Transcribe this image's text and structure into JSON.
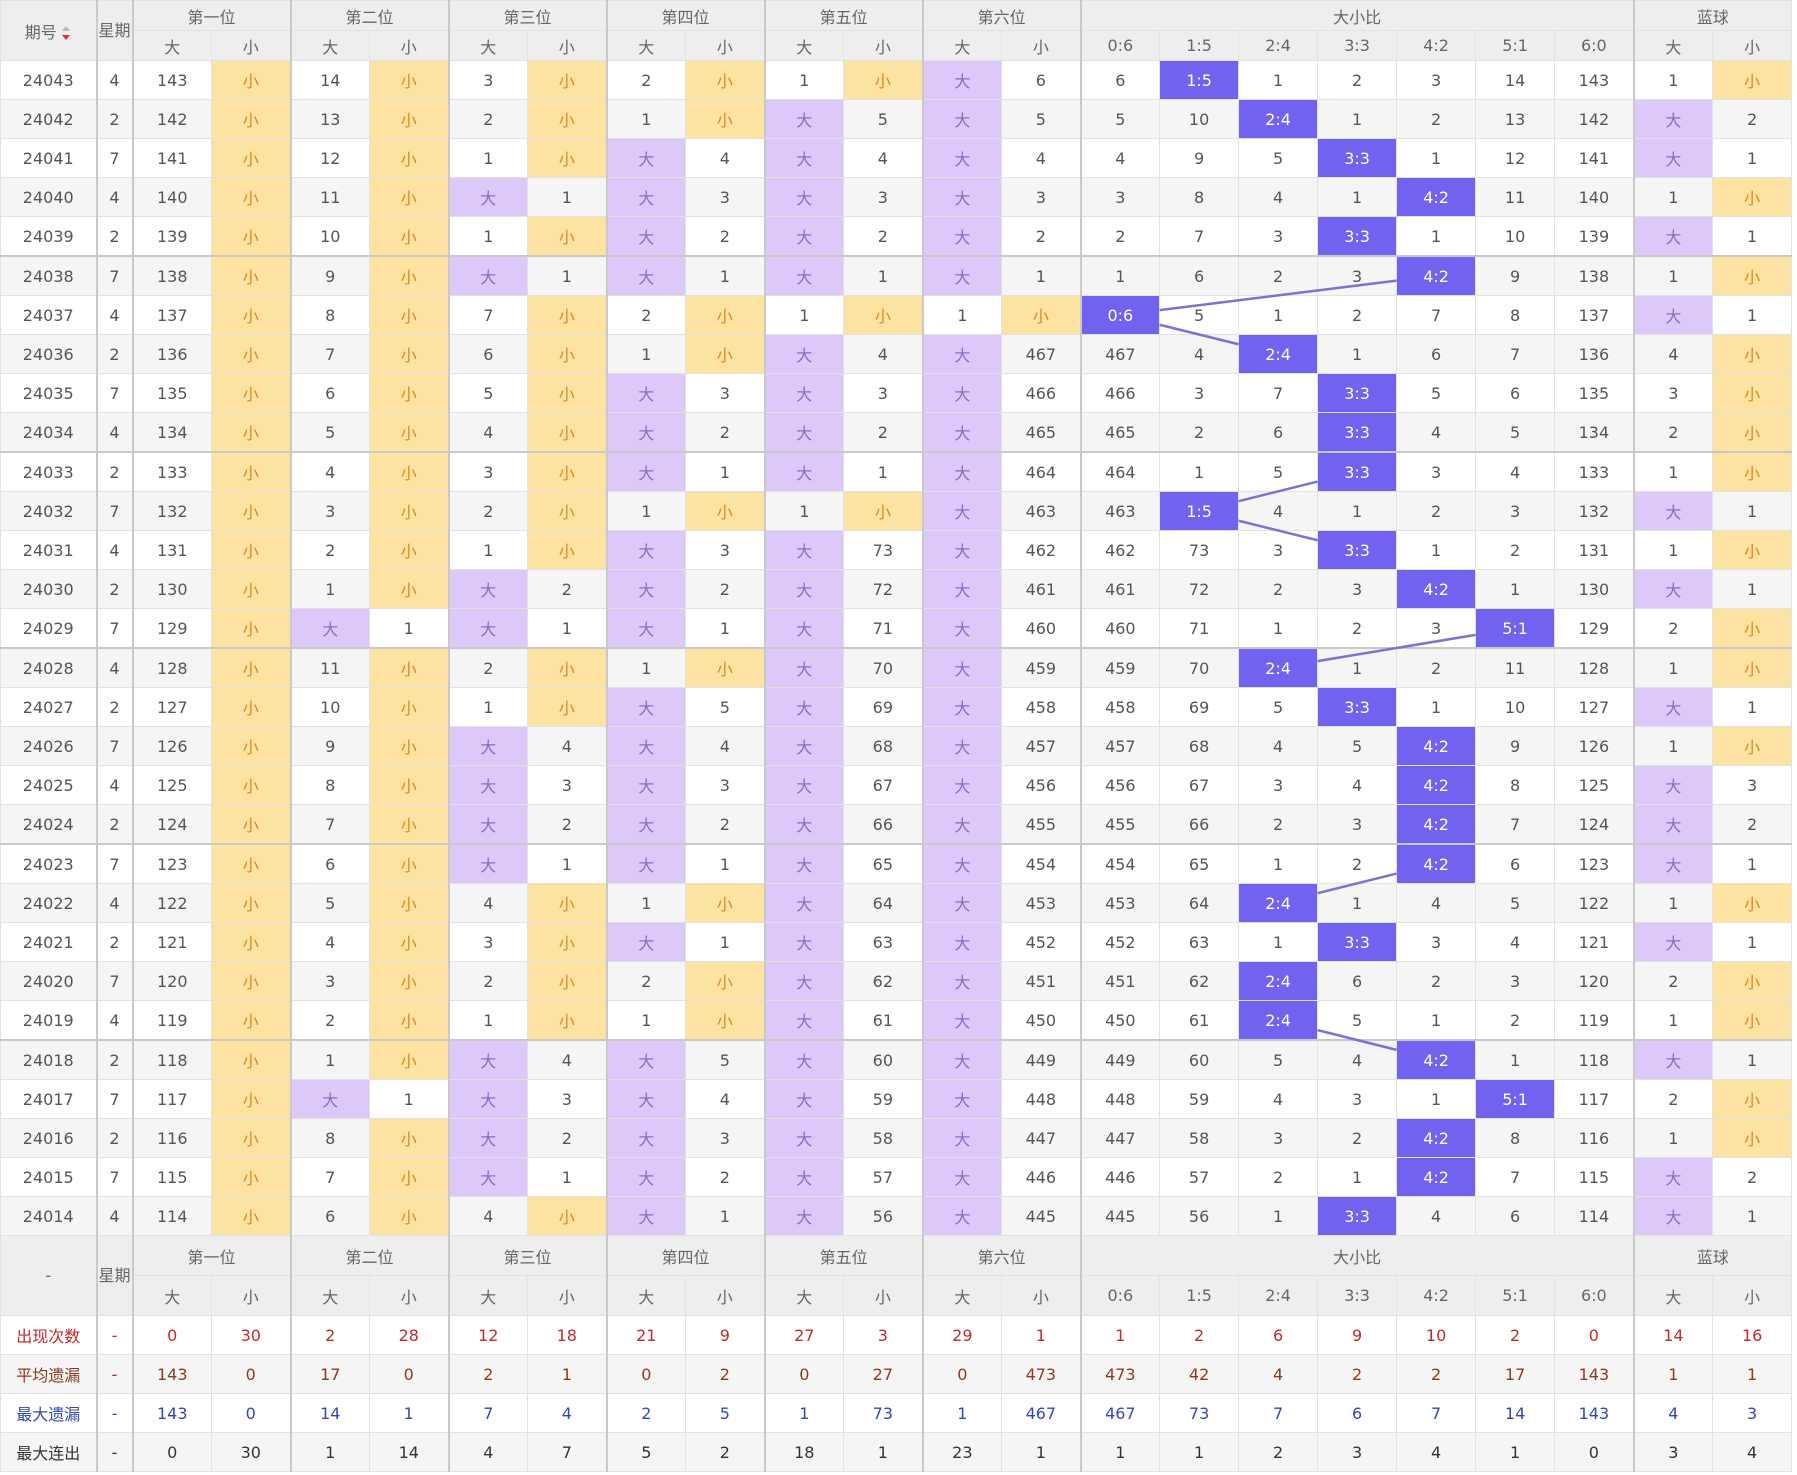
{
  "header": {
    "period": "期号",
    "weekday": "星期",
    "groups": [
      "第一位",
      "第二位",
      "第三位",
      "第四位",
      "第五位",
      "第六位",
      "大小比",
      "蓝球"
    ],
    "sub": [
      "大",
      "小",
      "大",
      "小",
      "大",
      "小",
      "大",
      "小",
      "大",
      "小",
      "大",
      "小",
      "0:6",
      "1:5",
      "2:4",
      "3:3",
      "4:2",
      "5:1",
      "6:0",
      "大",
      "小"
    ]
  },
  "rows": [
    [
      "24043",
      "4",
      143,
      "小",
      14,
      "小",
      3,
      "小",
      2,
      "小",
      1,
      "小",
      "大",
      6,
      6,
      "1:5",
      1,
      2,
      3,
      14,
      143,
      1,
      "小"
    ],
    [
      "24042",
      "2",
      142,
      "小",
      13,
      "小",
      2,
      "小",
      1,
      "小",
      "大",
      5,
      "大",
      5,
      5,
      10,
      "2:4",
      1,
      2,
      13,
      142,
      "大",
      2
    ],
    [
      "24041",
      "7",
      141,
      "小",
      12,
      "小",
      1,
      "小",
      "大",
      4,
      "大",
      4,
      "大",
      4,
      4,
      9,
      5,
      "3:3",
      1,
      12,
      141,
      "大",
      1
    ],
    [
      "24040",
      "4",
      140,
      "小",
      11,
      "小",
      "大",
      1,
      "大",
      3,
      "大",
      3,
      "大",
      3,
      3,
      8,
      4,
      1,
      "4:2",
      11,
      140,
      1,
      "小"
    ],
    [
      "24039",
      "2",
      139,
      "小",
      10,
      "小",
      1,
      "小",
      "大",
      2,
      "大",
      2,
      "大",
      2,
      2,
      7,
      3,
      "3:3",
      1,
      10,
      139,
      "大",
      1
    ],
    [
      "24038",
      "7",
      138,
      "小",
      9,
      "小",
      "大",
      1,
      "大",
      1,
      "大",
      1,
      "大",
      1,
      1,
      6,
      2,
      3,
      "4:2",
      9,
      138,
      1,
      "小"
    ],
    [
      "24037",
      "4",
      137,
      "小",
      8,
      "小",
      7,
      "小",
      2,
      "小",
      1,
      "小",
      1,
      "小",
      "0:6",
      5,
      1,
      2,
      7,
      8,
      137,
      "大",
      1
    ],
    [
      "24036",
      "2",
      136,
      "小",
      7,
      "小",
      6,
      "小",
      1,
      "小",
      "大",
      4,
      "大",
      467,
      467,
      4,
      "2:4",
      1,
      6,
      7,
      136,
      4,
      "小"
    ],
    [
      "24035",
      "7",
      135,
      "小",
      6,
      "小",
      5,
      "小",
      "大",
      3,
      "大",
      3,
      "大",
      466,
      466,
      3,
      7,
      "3:3",
      5,
      6,
      135,
      3,
      "小"
    ],
    [
      "24034",
      "4",
      134,
      "小",
      5,
      "小",
      4,
      "小",
      "大",
      2,
      "大",
      2,
      "大",
      465,
      465,
      2,
      6,
      "3:3",
      4,
      5,
      134,
      2,
      "小"
    ],
    [
      "24033",
      "2",
      133,
      "小",
      4,
      "小",
      3,
      "小",
      "大",
      1,
      "大",
      1,
      "大",
      464,
      464,
      1,
      5,
      "3:3",
      3,
      4,
      133,
      1,
      "小"
    ],
    [
      "24032",
      "7",
      132,
      "小",
      3,
      "小",
      2,
      "小",
      1,
      "小",
      1,
      "小",
      "大",
      463,
      463,
      "1:5",
      4,
      1,
      2,
      3,
      132,
      "大",
      1
    ],
    [
      "24031",
      "4",
      131,
      "小",
      2,
      "小",
      1,
      "小",
      "大",
      3,
      "大",
      73,
      "大",
      462,
      462,
      73,
      3,
      "3:3",
      1,
      2,
      131,
      1,
      "小"
    ],
    [
      "24030",
      "2",
      130,
      "小",
      1,
      "小",
      "大",
      2,
      "大",
      2,
      "大",
      72,
      "大",
      461,
      461,
      72,
      2,
      3,
      "4:2",
      1,
      130,
      "大",
      1
    ],
    [
      "24029",
      "7",
      129,
      "小",
      "大",
      1,
      "大",
      1,
      "大",
      1,
      "大",
      71,
      "大",
      460,
      460,
      71,
      1,
      2,
      3,
      "5:1",
      129,
      2,
      "小"
    ],
    [
      "24028",
      "4",
      128,
      "小",
      11,
      "小",
      2,
      "小",
      1,
      "小",
      "大",
      70,
      "大",
      459,
      459,
      70,
      "2:4",
      1,
      2,
      11,
      128,
      1,
      "小"
    ],
    [
      "24027",
      "2",
      127,
      "小",
      10,
      "小",
      1,
      "小",
      "大",
      5,
      "大",
      69,
      "大",
      458,
      458,
      69,
      5,
      "3:3",
      1,
      10,
      127,
      "大",
      1
    ],
    [
      "24026",
      "7",
      126,
      "小",
      9,
      "小",
      "大",
      4,
      "大",
      4,
      "大",
      68,
      "大",
      457,
      457,
      68,
      4,
      5,
      "4:2",
      9,
      126,
      1,
      "小"
    ],
    [
      "24025",
      "4",
      125,
      "小",
      8,
      "小",
      "大",
      3,
      "大",
      3,
      "大",
      67,
      "大",
      456,
      456,
      67,
      3,
      4,
      "4:2",
      8,
      125,
      "大",
      3
    ],
    [
      "24024",
      "2",
      124,
      "小",
      7,
      "小",
      "大",
      2,
      "大",
      2,
      "大",
      66,
      "大",
      455,
      455,
      66,
      2,
      3,
      "4:2",
      7,
      124,
      "大",
      2
    ],
    [
      "24023",
      "7",
      123,
      "小",
      6,
      "小",
      "大",
      1,
      "大",
      1,
      "大",
      65,
      "大",
      454,
      454,
      65,
      1,
      2,
      "4:2",
      6,
      123,
      "大",
      1
    ],
    [
      "24022",
      "4",
      122,
      "小",
      5,
      "小",
      4,
      "小",
      1,
      "小",
      "大",
      64,
      "大",
      453,
      453,
      64,
      "2:4",
      1,
      4,
      5,
      122,
      1,
      "小"
    ],
    [
      "24021",
      "2",
      121,
      "小",
      4,
      "小",
      3,
      "小",
      "大",
      1,
      "大",
      63,
      "大",
      452,
      452,
      63,
      1,
      "3:3",
      3,
      4,
      121,
      "大",
      1
    ],
    [
      "24020",
      "7",
      120,
      "小",
      3,
      "小",
      2,
      "小",
      2,
      "小",
      "大",
      62,
      "大",
      451,
      451,
      62,
      "2:4",
      6,
      2,
      3,
      120,
      2,
      "小"
    ],
    [
      "24019",
      "4",
      119,
      "小",
      2,
      "小",
      1,
      "小",
      1,
      "小",
      "大",
      61,
      "大",
      450,
      450,
      61,
      "2:4",
      5,
      1,
      2,
      119,
      1,
      "小"
    ],
    [
      "24018",
      "2",
      118,
      "小",
      1,
      "小",
      "大",
      4,
      "大",
      5,
      "大",
      60,
      "大",
      449,
      449,
      60,
      5,
      4,
      "4:2",
      1,
      118,
      "大",
      1
    ],
    [
      "24017",
      "7",
      117,
      "小",
      "大",
      1,
      "大",
      3,
      "大",
      4,
      "大",
      59,
      "大",
      448,
      448,
      59,
      4,
      3,
      1,
      "5:1",
      117,
      2,
      "小"
    ],
    [
      "24016",
      "2",
      116,
      "小",
      8,
      "小",
      "大",
      2,
      "大",
      3,
      "大",
      58,
      "大",
      447,
      447,
      58,
      3,
      2,
      "4:2",
      8,
      116,
      1,
      "小"
    ],
    [
      "24015",
      "7",
      115,
      "小",
      7,
      "小",
      "大",
      1,
      "大",
      2,
      "大",
      57,
      "大",
      446,
      446,
      57,
      2,
      1,
      "4:2",
      7,
      115,
      "大",
      2
    ],
    [
      "24014",
      "4",
      114,
      "小",
      6,
      "小",
      4,
      "小",
      "大",
      1,
      "大",
      56,
      "大",
      445,
      445,
      56,
      1,
      "3:3",
      4,
      6,
      114,
      "大",
      1
    ]
  ],
  "footer": {
    "label": "-"
  },
  "stats": [
    {
      "label": "出现次数",
      "weekday": "-",
      "values": [
        0,
        30,
        2,
        28,
        12,
        18,
        21,
        9,
        27,
        3,
        29,
        1,
        1,
        2,
        6,
        9,
        10,
        2,
        0,
        14,
        16
      ]
    },
    {
      "label": "平均遗漏",
      "weekday": "-",
      "values": [
        143,
        0,
        17,
        0,
        2,
        1,
        0,
        2,
        0,
        27,
        0,
        473,
        473,
        42,
        4,
        2,
        2,
        17,
        143,
        1,
        1
      ]
    },
    {
      "label": "最大遗漏",
      "weekday": "-",
      "values": [
        143,
        0,
        14,
        1,
        7,
        4,
        2,
        5,
        1,
        73,
        1,
        467,
        467,
        73,
        7,
        6,
        7,
        14,
        143,
        4,
        3
      ]
    },
    {
      "label": "最大连出",
      "weekday": "-",
      "values": [
        0,
        30,
        1,
        14,
        4,
        7,
        5,
        2,
        18,
        1,
        23,
        1,
        1,
        1,
        2,
        3,
        4,
        1,
        0,
        3,
        4
      ]
    }
  ]
}
